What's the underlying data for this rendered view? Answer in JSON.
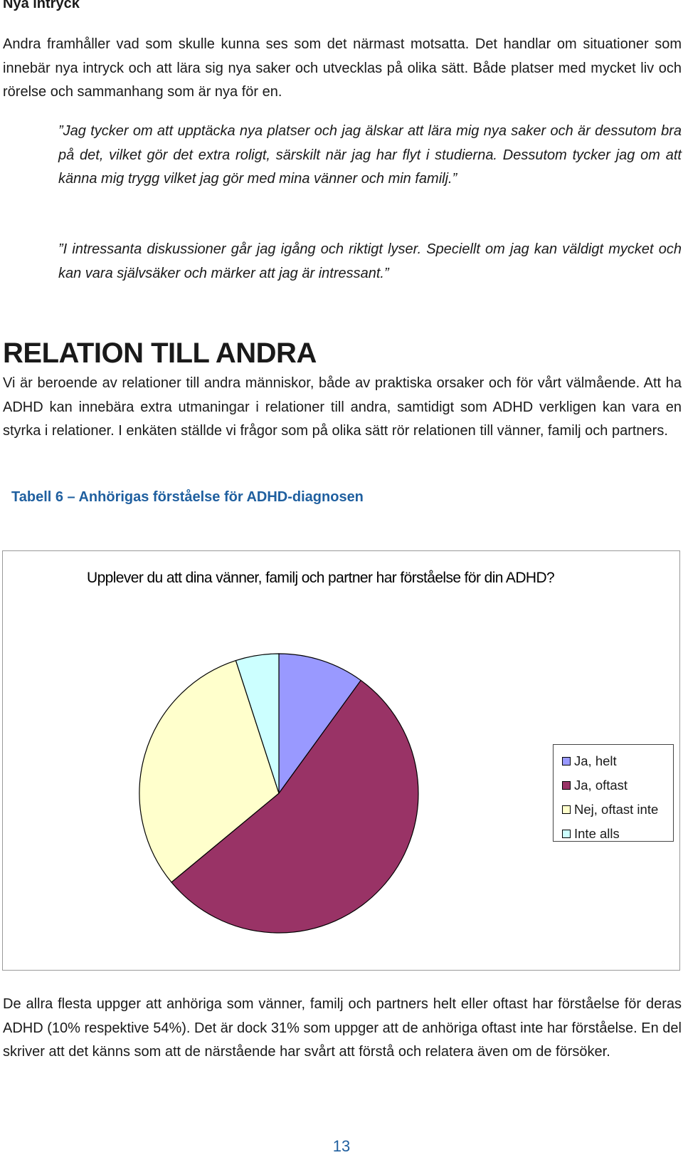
{
  "section": {
    "heading": "Nya intryck",
    "paragraph": "Andra framhåller vad som skulle kunna ses som det närmast motsatta. Det handlar om situationer som innebär nya intryck och att lära sig nya saker och utvecklas på olika sätt. Både platser med mycket liv och rörelse och sammanhang som är nya för en.",
    "quote1": "”Jag tycker om att upptäcka nya platser och jag älskar att lära mig nya saker och är dessutom bra på det, vilket gör det extra roligt, särskilt när jag har flyt i studierna. Dessutom tycker jag om att känna mig trygg vilket jag gör med mina vänner och min familj.”",
    "quote2": "”I intressanta diskussioner går jag igång och riktigt lyser. Speciellt om jag kan väldigt mycket och kan vara självsäker och märker att jag är intressant.”"
  },
  "relation": {
    "heading": "RELATION TILL ANDRA",
    "paragraph": "Vi är beroende av relationer till andra människor, både av praktiska orsaker och för vårt välmående. Att ha ADHD kan innebära extra utmaningar i relationer till andra, samtidigt som ADHD verkligen kan vara en styrka i relationer. I enkäten ställde vi frågor som på olika sätt rör relationen till vänner, familj och partners.",
    "table_caption": "Tabell 6 – Anhörigas förståelse för ADHD-diagnosen"
  },
  "chart_data": {
    "type": "pie",
    "title": "Upplever du att dina vänner, familj och partner har förståelse för din ADHD?",
    "categories": [
      "Ja, helt",
      "Ja, oftast",
      "Nej, oftast inte",
      "Inte alls"
    ],
    "values": [
      10,
      54,
      31,
      5
    ],
    "colors": [
      "#9999ff",
      "#993366",
      "#ffffcc",
      "#ccffff"
    ],
    "legend_position": "right"
  },
  "conclusion": "De allra flesta uppger att anhöriga som vänner, familj och partners helt eller oftast har förståelse för deras ADHD (10% respektive 54%). Det är dock 31% som uppger att de anhöriga oftast inte har förståelse. En del skriver att det känns som att de närstående har svårt att förstå och relatera även om de försöker.",
  "page_number": "13"
}
